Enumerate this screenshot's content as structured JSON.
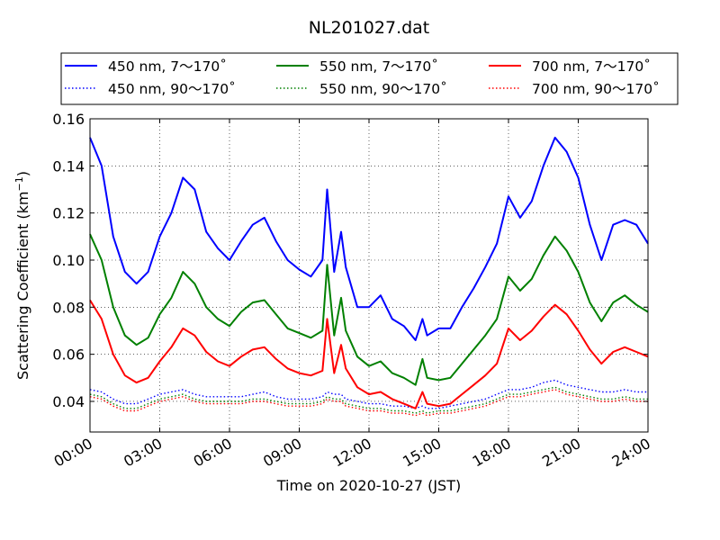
{
  "chart_data": {
    "type": "line",
    "title": "NL201027.dat",
    "xlabel": "Time on 2020-10-27 (JST)",
    "ylabel_main": "Scattering Coefficient (km",
    "ylabel_exp": "−1",
    "ylabel_close": ")",
    "xlim": [
      0,
      24
    ],
    "ylim": [
      0.027,
      0.16
    ],
    "x_ticks": [
      0,
      3,
      6,
      9,
      12,
      15,
      18,
      21,
      24
    ],
    "x_tick_labels": [
      "00:00",
      "03:00",
      "06:00",
      "09:00",
      "12:00",
      "15:00",
      "18:00",
      "21:00",
      "24:00"
    ],
    "y_ticks": [
      0.04,
      0.06,
      0.08,
      0.1,
      0.12,
      0.14,
      0.16
    ],
    "y_tick_labels": [
      "0.04",
      "0.06",
      "0.08",
      "0.10",
      "0.12",
      "0.14",
      "0.16"
    ],
    "grid": true,
    "legend_position": "top",
    "x": [
      0,
      0.5,
      1,
      1.5,
      2,
      2.5,
      3,
      3.5,
      4,
      4.5,
      5,
      5.5,
      6,
      6.5,
      7,
      7.5,
      8,
      8.5,
      9,
      9.5,
      10,
      10.2,
      10.5,
      10.8,
      11,
      11.5,
      12,
      12.5,
      13,
      13.5,
      14,
      14.3,
      14.5,
      15,
      15.5,
      16,
      16.5,
      17,
      17.5,
      18,
      18.5,
      19,
      19.5,
      20,
      20.5,
      21,
      21.5,
      22,
      22.5,
      23,
      23.5,
      24
    ],
    "series": [
      {
        "name": "450 nm, 7～170˚",
        "color": "#0000ff",
        "style": "solid",
        "values": [
          0.152,
          0.14,
          0.11,
          0.095,
          0.09,
          0.095,
          0.11,
          0.12,
          0.135,
          0.13,
          0.112,
          0.105,
          0.1,
          0.108,
          0.115,
          0.118,
          0.108,
          0.1,
          0.096,
          0.093,
          0.1,
          0.13,
          0.095,
          0.112,
          0.097,
          0.08,
          0.08,
          0.085,
          0.075,
          0.072,
          0.066,
          0.075,
          0.068,
          0.071,
          0.071,
          0.08,
          0.088,
          0.097,
          0.107,
          0.127,
          0.118,
          0.125,
          0.14,
          0.152,
          0.146,
          0.135,
          0.115,
          0.1,
          0.115,
          0.117,
          0.115,
          0.107
        ]
      },
      {
        "name": "450 nm, 90～170˚",
        "color": "#0000ff",
        "style": "dotted",
        "values": [
          0.045,
          0.044,
          0.041,
          0.039,
          0.039,
          0.041,
          0.043,
          0.044,
          0.045,
          0.043,
          0.042,
          0.042,
          0.042,
          0.042,
          0.043,
          0.044,
          0.042,
          0.041,
          0.041,
          0.041,
          0.042,
          0.044,
          0.043,
          0.043,
          0.041,
          0.04,
          0.039,
          0.039,
          0.038,
          0.038,
          0.037,
          0.038,
          0.037,
          0.037,
          0.038,
          0.039,
          0.04,
          0.041,
          0.043,
          0.045,
          0.045,
          0.046,
          0.048,
          0.049,
          0.047,
          0.046,
          0.045,
          0.044,
          0.044,
          0.045,
          0.044,
          0.044
        ]
      },
      {
        "name": "550 nm, 7～170˚",
        "color": "#008000",
        "style": "solid",
        "values": [
          0.111,
          0.1,
          0.08,
          0.068,
          0.064,
          0.067,
          0.077,
          0.084,
          0.095,
          0.09,
          0.08,
          0.075,
          0.072,
          0.078,
          0.082,
          0.083,
          0.077,
          0.071,
          0.069,
          0.067,
          0.07,
          0.098,
          0.068,
          0.084,
          0.07,
          0.059,
          0.055,
          0.057,
          0.052,
          0.05,
          0.047,
          0.058,
          0.05,
          0.049,
          0.05,
          0.056,
          0.062,
          0.068,
          0.075,
          0.093,
          0.087,
          0.092,
          0.102,
          0.11,
          0.104,
          0.095,
          0.082,
          0.074,
          0.082,
          0.085,
          0.081,
          0.078
        ]
      },
      {
        "name": "550 nm, 90～170˚",
        "color": "#008000",
        "style": "dotted",
        "values": [
          0.043,
          0.042,
          0.039,
          0.037,
          0.037,
          0.039,
          0.041,
          0.042,
          0.043,
          0.041,
          0.04,
          0.04,
          0.04,
          0.04,
          0.041,
          0.041,
          0.04,
          0.039,
          0.039,
          0.039,
          0.04,
          0.042,
          0.041,
          0.041,
          0.039,
          0.038,
          0.037,
          0.037,
          0.036,
          0.036,
          0.035,
          0.036,
          0.035,
          0.036,
          0.036,
          0.037,
          0.038,
          0.039,
          0.041,
          0.043,
          0.043,
          0.044,
          0.045,
          0.046,
          0.044,
          0.043,
          0.042,
          0.041,
          0.041,
          0.042,
          0.041,
          0.041
        ]
      },
      {
        "name": "700 nm, 7～170˚",
        "color": "#ff0000",
        "style": "solid",
        "values": [
          0.083,
          0.075,
          0.06,
          0.051,
          0.048,
          0.05,
          0.057,
          0.063,
          0.071,
          0.068,
          0.061,
          0.057,
          0.055,
          0.059,
          0.062,
          0.063,
          0.058,
          0.054,
          0.052,
          0.051,
          0.053,
          0.075,
          0.052,
          0.064,
          0.054,
          0.046,
          0.043,
          0.044,
          0.041,
          0.039,
          0.037,
          0.044,
          0.039,
          0.038,
          0.039,
          0.043,
          0.047,
          0.051,
          0.056,
          0.071,
          0.066,
          0.07,
          0.076,
          0.081,
          0.077,
          0.07,
          0.062,
          0.056,
          0.061,
          0.063,
          0.061,
          0.059
        ]
      },
      {
        "name": "700 nm, 90～170˚",
        "color": "#ff0000",
        "style": "dotted",
        "values": [
          0.042,
          0.041,
          0.038,
          0.036,
          0.036,
          0.038,
          0.04,
          0.041,
          0.042,
          0.04,
          0.039,
          0.039,
          0.039,
          0.039,
          0.04,
          0.04,
          0.039,
          0.038,
          0.038,
          0.038,
          0.039,
          0.041,
          0.04,
          0.04,
          0.038,
          0.037,
          0.036,
          0.036,
          0.035,
          0.035,
          0.034,
          0.035,
          0.034,
          0.035,
          0.035,
          0.036,
          0.037,
          0.038,
          0.04,
          0.042,
          0.042,
          0.043,
          0.044,
          0.045,
          0.043,
          0.042,
          0.041,
          0.04,
          0.04,
          0.041,
          0.04,
          0.04
        ]
      }
    ]
  }
}
